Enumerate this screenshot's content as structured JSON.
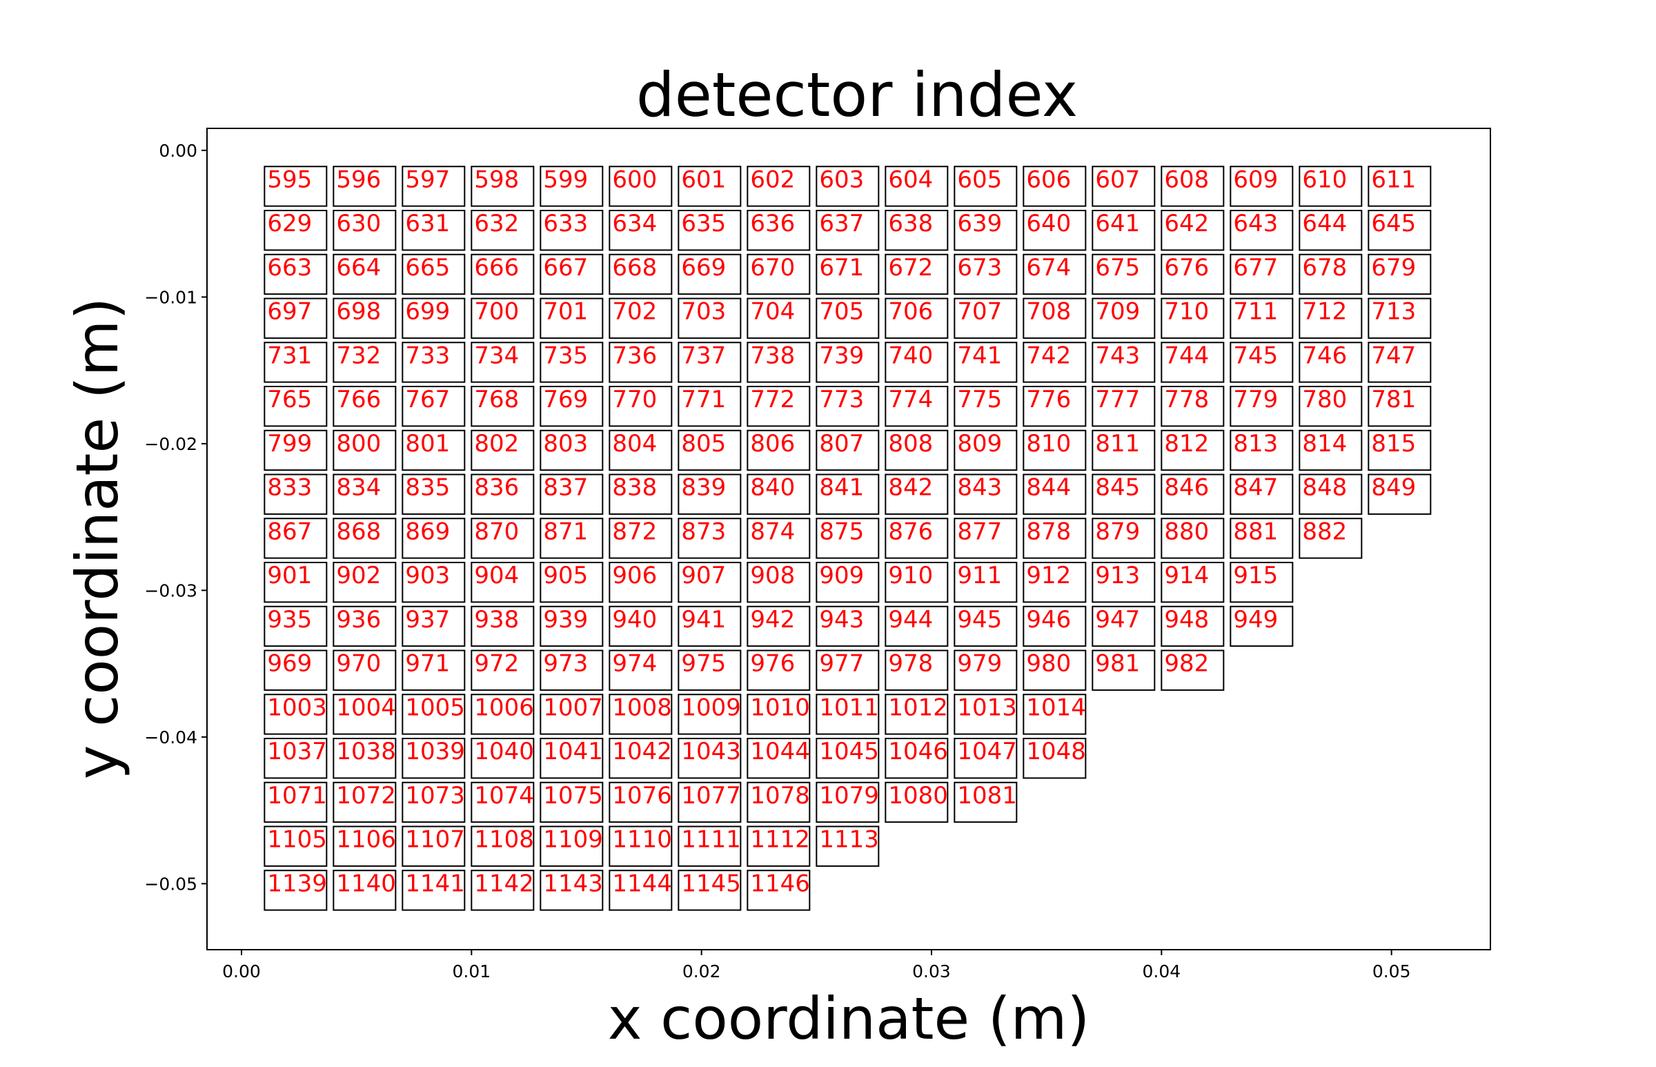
{
  "chart_data": {
    "type": "scatter",
    "title": "detector index",
    "xlabel": "x coordinate (m)",
    "ylabel": "y coordinate (m)",
    "xlim": [
      -0.0015,
      0.0543
    ],
    "ylim": [
      -0.0545,
      0.0015
    ],
    "xticks": [
      0.0,
      0.01,
      0.02,
      0.03,
      0.04,
      0.05
    ],
    "xtick_labels": [
      "0.00",
      "0.01",
      "0.02",
      "0.03",
      "0.04",
      "0.05"
    ],
    "yticks": [
      0.0,
      -0.01,
      -0.02,
      -0.03,
      -0.04,
      -0.05
    ],
    "ytick_labels": [
      "0.00",
      "−0.01",
      "−0.02",
      "−0.03",
      "−0.04",
      "−0.05"
    ],
    "label_color": "#ff0000",
    "box_color": "#000000",
    "detector_size": [
      0.0027,
      0.0027
    ],
    "first_x": 0.001,
    "first_y": -0.0011,
    "pitch_x": 0.003,
    "pitch_y": -0.003,
    "rows": [
      {
        "y": -0.0011,
        "start_index": 595,
        "count": 17
      },
      {
        "y": -0.0041,
        "start_index": 629,
        "count": 17
      },
      {
        "y": -0.0071,
        "start_index": 663,
        "count": 17
      },
      {
        "y": -0.0101,
        "start_index": 697,
        "count": 17
      },
      {
        "y": -0.0131,
        "start_index": 731,
        "count": 17
      },
      {
        "y": -0.0161,
        "start_index": 765,
        "count": 17
      },
      {
        "y": -0.0191,
        "start_index": 799,
        "count": 17
      },
      {
        "y": -0.0221,
        "start_index": 833,
        "count": 17
      },
      {
        "y": -0.0251,
        "start_index": 867,
        "count": 16
      },
      {
        "y": -0.0281,
        "start_index": 901,
        "count": 15
      },
      {
        "y": -0.0311,
        "start_index": 935,
        "count": 15
      },
      {
        "y": -0.0341,
        "start_index": 969,
        "count": 14
      },
      {
        "y": -0.0371,
        "start_index": 1003,
        "count": 12
      },
      {
        "y": -0.0401,
        "start_index": 1037,
        "count": 12
      },
      {
        "y": -0.0431,
        "start_index": 1071,
        "count": 11
      },
      {
        "y": -0.0461,
        "start_index": 1105,
        "count": 9
      },
      {
        "y": -0.0491,
        "start_index": 1139,
        "count": 8
      }
    ],
    "grid": false,
    "legend": "none"
  }
}
